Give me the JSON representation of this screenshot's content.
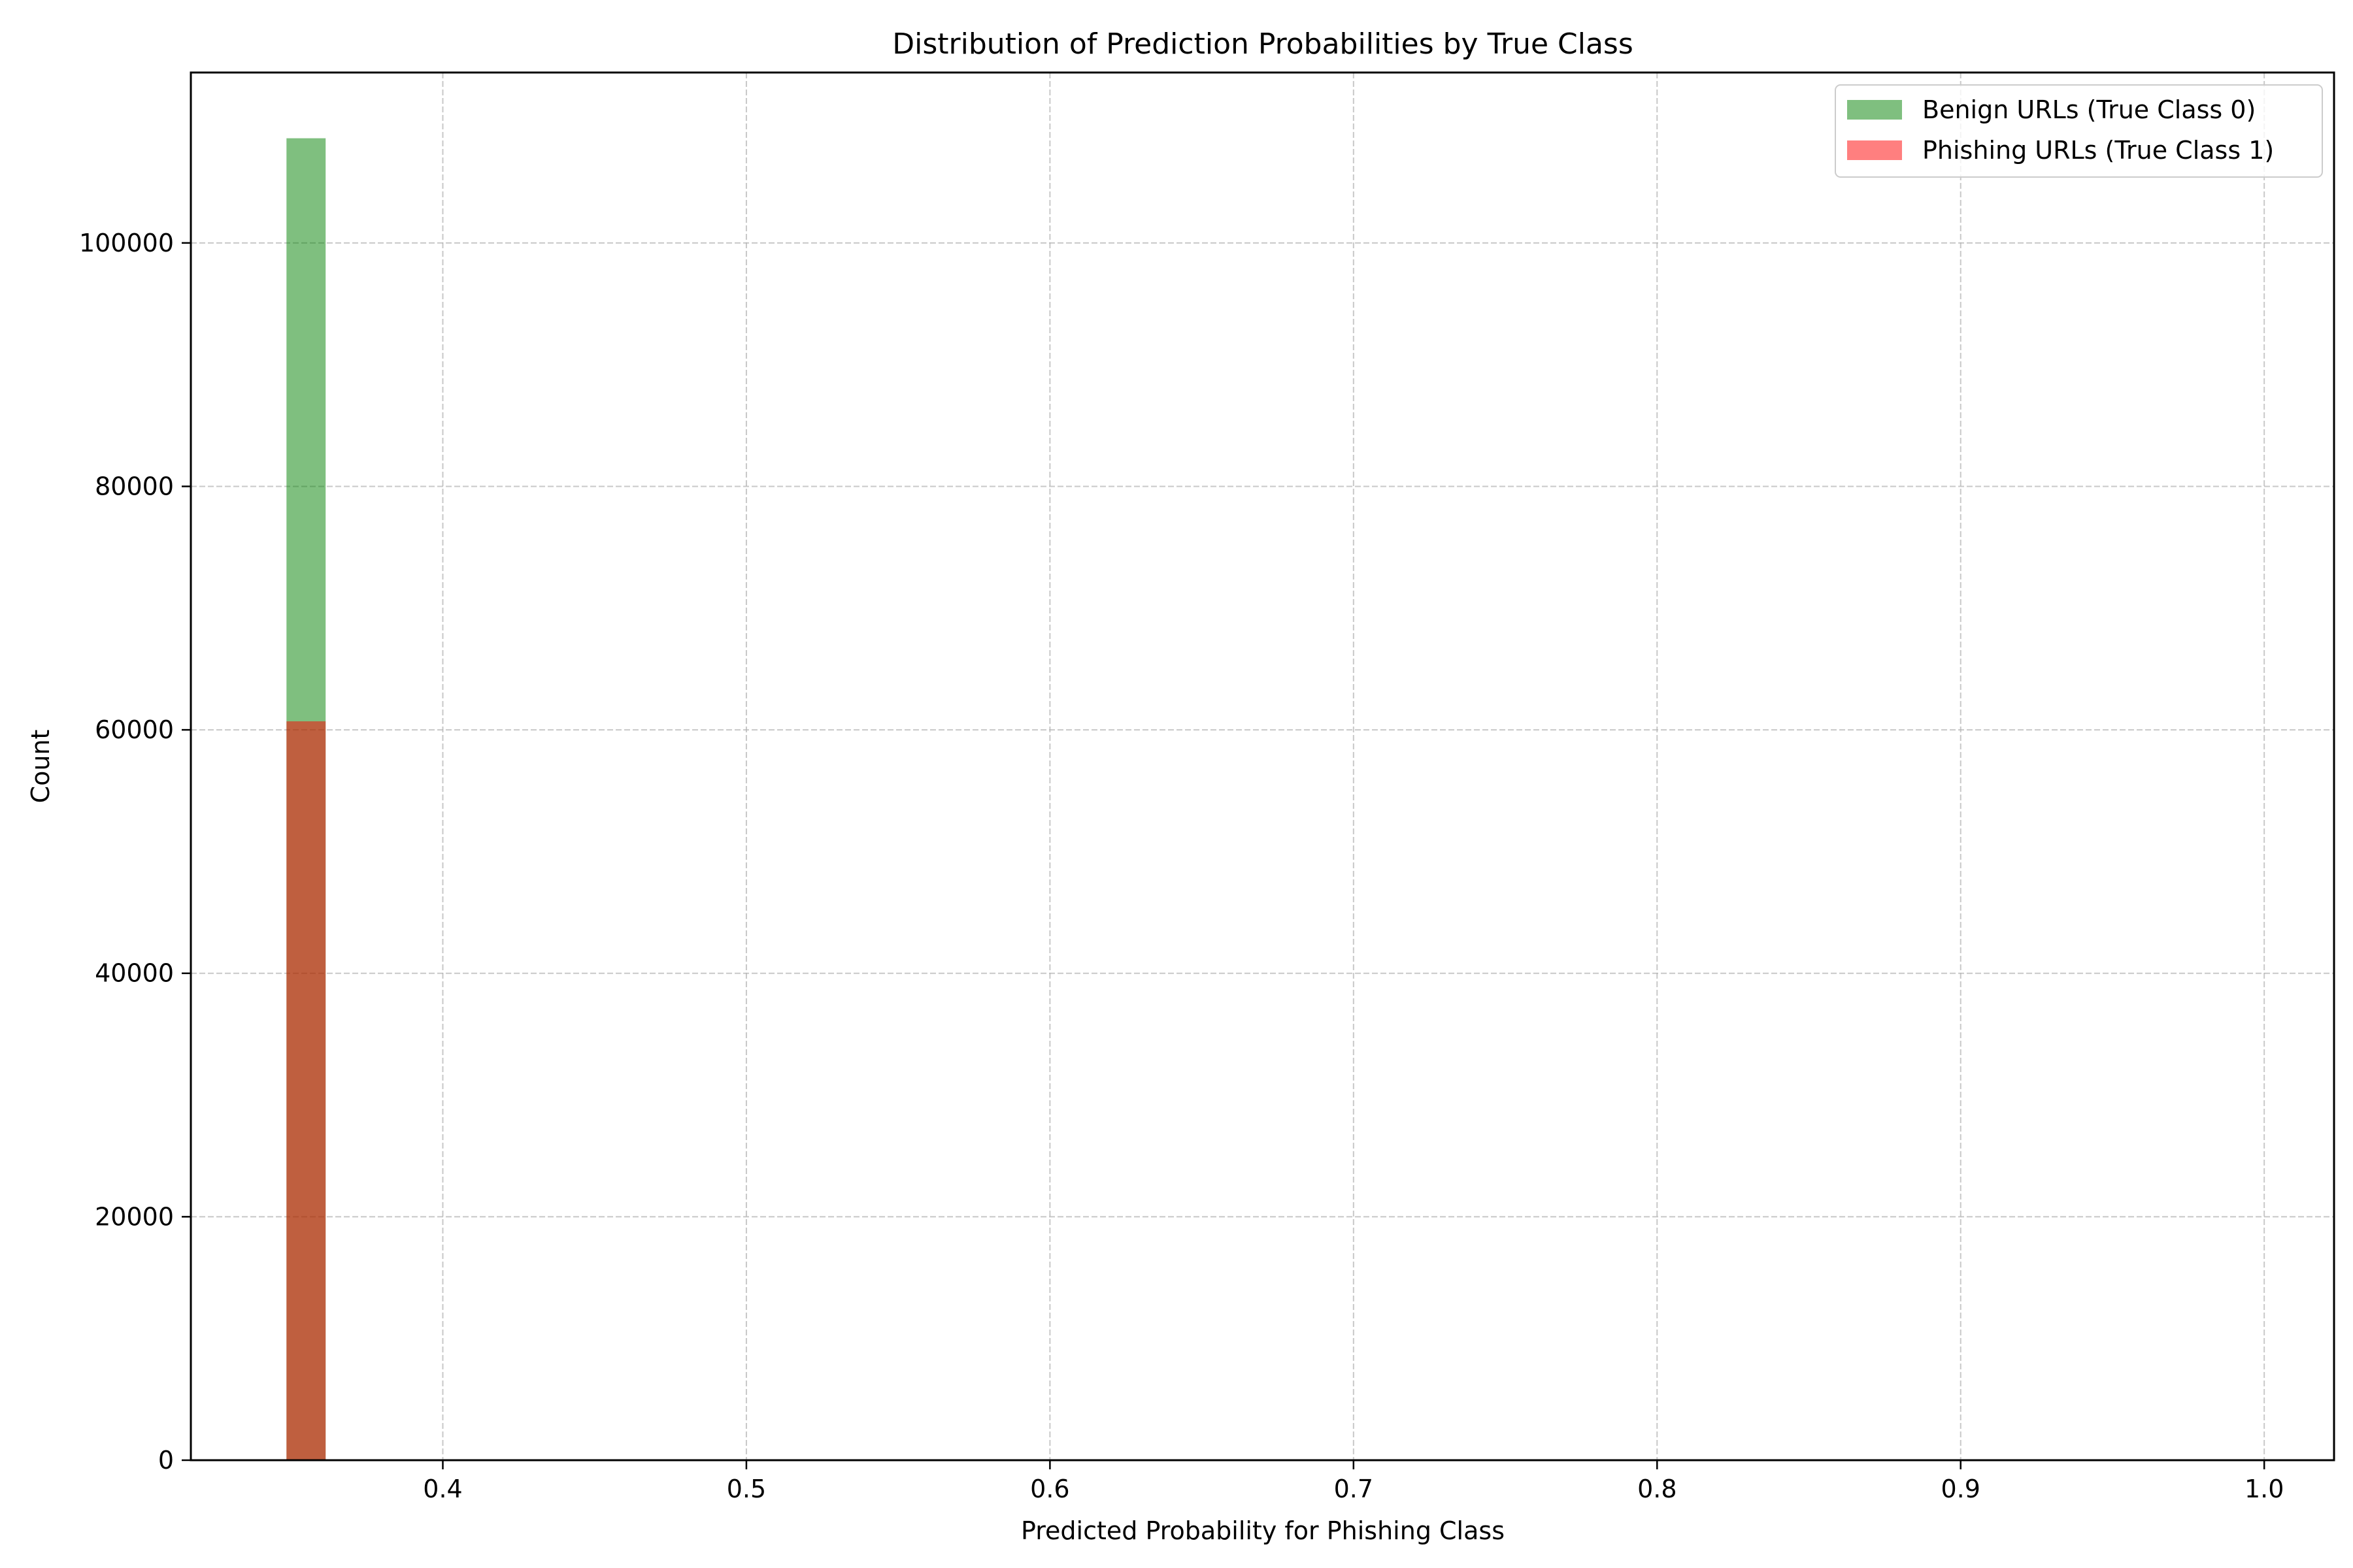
{
  "chart_data": {
    "type": "bar",
    "title": "Distribution of Prediction Probabilities by True Class",
    "xlabel": "Predicted Probability for Phishing Class",
    "ylabel": "Count",
    "xlim": [
      0.317,
      1.023
    ],
    "ylim": [
      0,
      114000
    ],
    "xticks": [
      0.4,
      0.5,
      0.6,
      0.7,
      0.8,
      0.9,
      1.0
    ],
    "xtick_labels": [
      "0.4",
      "0.5",
      "0.6",
      "0.7",
      "0.8",
      "0.9",
      "1.0"
    ],
    "yticks": [
      0,
      20000,
      40000,
      60000,
      80000,
      100000
    ],
    "ytick_labels": [
      "0",
      "20000",
      "40000",
      "60000",
      "80000",
      "100000"
    ],
    "grid": true,
    "legend_position": "top-right",
    "bin_width": 0.0129,
    "series": [
      {
        "name": "Benign URLs (True Class 0)",
        "color": "#008000",
        "alpha": 0.5,
        "bins": [
          {
            "x0": 0.3485,
            "x1": 0.3614,
            "count": 108600
          }
        ]
      },
      {
        "name": "Phishing URLs (True Class 1)",
        "color": "#ff0000",
        "alpha": 0.5,
        "bins": [
          {
            "x0": 0.3485,
            "x1": 0.3614,
            "count": 60700
          }
        ]
      }
    ]
  }
}
